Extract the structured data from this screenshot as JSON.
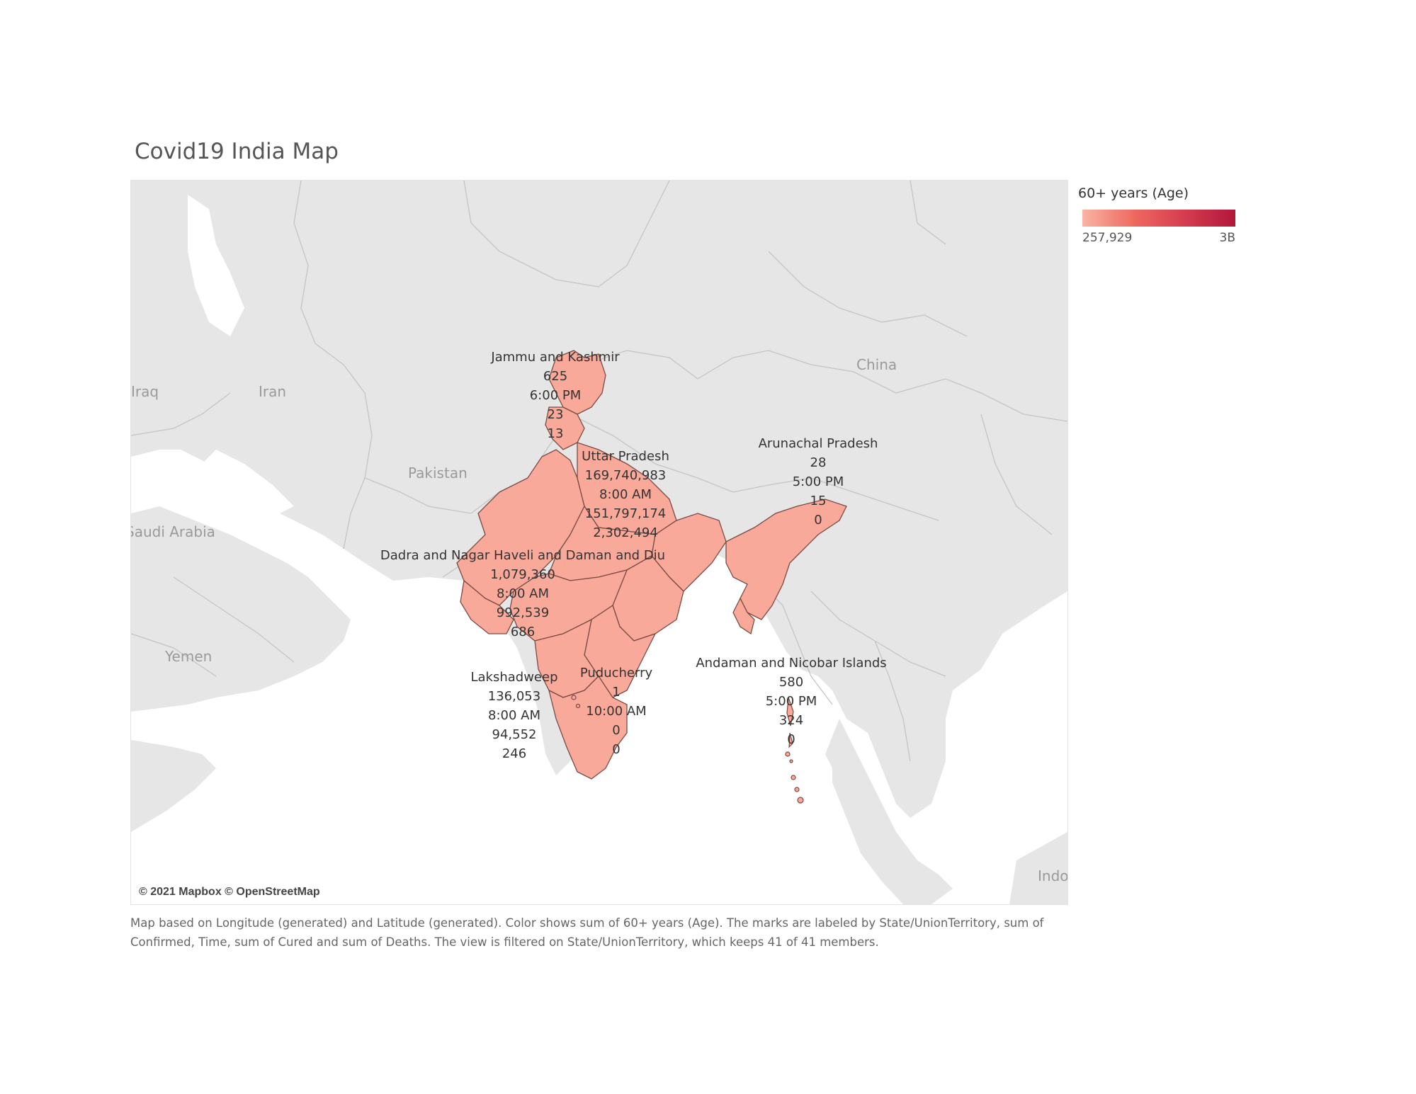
{
  "title": "Covid19 India Map",
  "legend": {
    "title": "60+ years (Age)",
    "min_label": "257,929",
    "max_label": "3B",
    "colors": [
      "#f9b4a4",
      "#ee6a61",
      "#d63c4f",
      "#b2163b"
    ]
  },
  "map": {
    "attribution": "© 2021 Mapbox © OpenStreetMap",
    "country_labels": {
      "iraq": "Iraq",
      "iran": "Iran",
      "pakistan": "Pakistan",
      "saudi_arabia": "Saudi Arabia",
      "yemen": "Yemen",
      "china": "China",
      "indonesia": "Indonesia"
    },
    "marks": [
      {
        "state": "Jammu and Kashmir",
        "confirmed": "625",
        "time": "6:00 PM",
        "cured": "23",
        "deaths": "13"
      },
      {
        "state": "Uttar Pradesh",
        "confirmed": "169,740,983",
        "time": "8:00 AM",
        "cured": "151,797,174",
        "deaths": "2,302,494"
      },
      {
        "state": "Arunachal Pradesh",
        "confirmed": "28",
        "time": "5:00 PM",
        "cured": "15",
        "deaths": "0"
      },
      {
        "state": "Dadra and Nagar Haveli and Daman and Diu",
        "confirmed": "1,079,360",
        "time": "8:00 AM",
        "cured": "992,539",
        "deaths": "686"
      },
      {
        "state": "Lakshadweep",
        "confirmed": "136,053",
        "time": "8:00 AM",
        "cured": "94,552",
        "deaths": "246"
      },
      {
        "state": "Puducherry",
        "confirmed": "1",
        "time": "10:00 AM",
        "cured": "0",
        "deaths": "0"
      },
      {
        "state": "Andaman and Nicobar Islands",
        "confirmed": "580",
        "time": "5:00 PM",
        "cured": "324",
        "deaths": "0"
      }
    ],
    "fill_color": "#f8a999",
    "stroke_color": "#7a4a44"
  },
  "caption": "Map based on Longitude (generated) and Latitude (generated).  Color shows sum of 60+ years (Age).  The marks are labeled by State/UnionTerritory, sum of Confirmed, Time, sum of Cured and sum of Deaths. The view is filtered on State/UnionTerritory, which keeps 41 of 41 members."
}
